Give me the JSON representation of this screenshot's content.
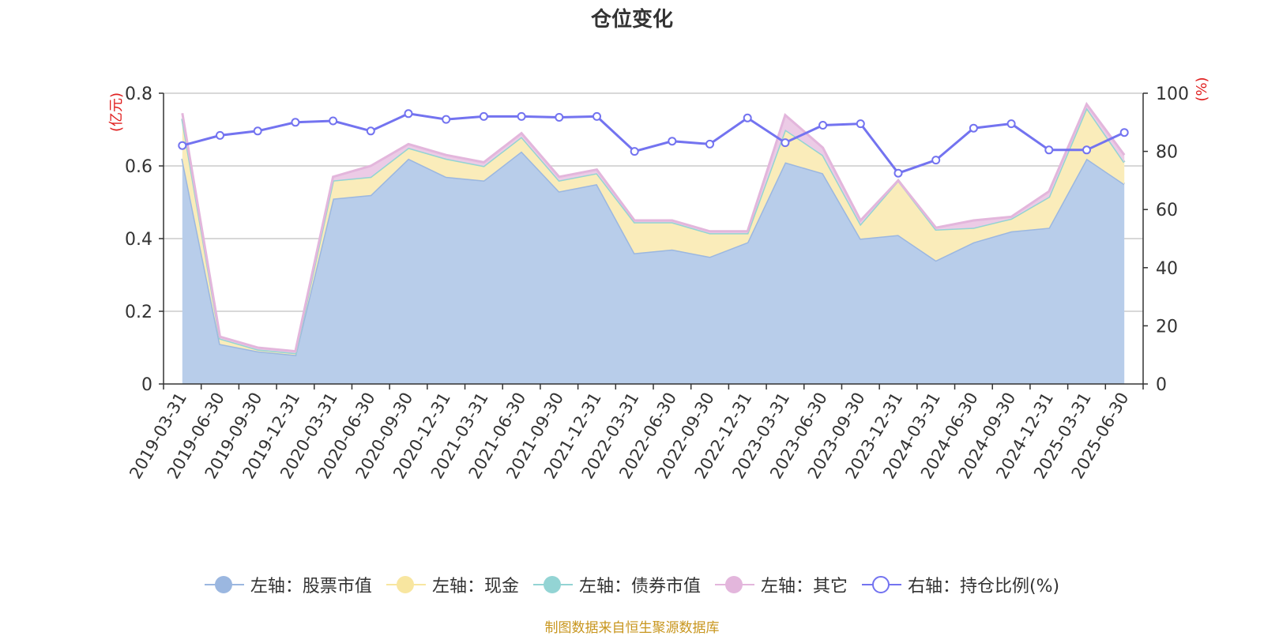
{
  "title": "仓位变化",
  "footer": "制图数据来自恒生聚源数据库",
  "chart_data": {
    "type": "area",
    "title": "仓位变化",
    "left_axis": {
      "label": "(亿元)",
      "ylim": [
        0,
        0.8
      ],
      "ticks": [
        0,
        0.2,
        0.4,
        0.6,
        0.8
      ],
      "tick_labels": [
        "0",
        "0.2",
        "0.4",
        "0.6",
        "0.8"
      ]
    },
    "right_axis": {
      "label": "(%)",
      "ylim": [
        0,
        100
      ],
      "ticks": [
        0,
        20,
        40,
        60,
        80,
        100
      ],
      "tick_labels": [
        "0",
        "20",
        "40",
        "60",
        "80",
        "100"
      ]
    },
    "categories": [
      "2019-03-31",
      "2019-06-30",
      "2019-09-30",
      "2019-12-31",
      "2020-03-31",
      "2020-06-30",
      "2020-09-30",
      "2020-12-31",
      "2021-03-31",
      "2021-06-30",
      "2021-09-30",
      "2021-12-31",
      "2022-03-31",
      "2022-06-30",
      "2022-09-30",
      "2022-12-31",
      "2023-03-31",
      "2023-06-30",
      "2023-09-30",
      "2023-12-31",
      "2024-03-31",
      "2024-06-30",
      "2024-09-30",
      "2024-12-31",
      "2025-03-31",
      "2025-06-30"
    ],
    "series": [
      {
        "name": "左轴：股票市值",
        "axis": "left",
        "color": "#9bb7e0",
        "fill": "#b8cdea",
        "values": [
          0.62,
          0.11,
          0.09,
          0.08,
          0.51,
          0.52,
          0.62,
          0.57,
          0.56,
          0.64,
          0.53,
          0.55,
          0.36,
          0.37,
          0.35,
          0.39,
          0.61,
          0.58,
          0.4,
          0.41,
          0.34,
          0.39,
          0.42,
          0.43,
          0.62,
          0.55
        ]
      },
      {
        "name": "左轴：现金",
        "axis": "left",
        "color": "#f8e6a0",
        "fill": "#faecba",
        "values": [
          0.11,
          0.015,
          0.005,
          0.005,
          0.05,
          0.05,
          0.03,
          0.05,
          0.04,
          0.04,
          0.03,
          0.03,
          0.085,
          0.075,
          0.065,
          0.025,
          0.09,
          0.05,
          0.04,
          0.15,
          0.085,
          0.04,
          0.035,
          0.085,
          0.14,
          0.06
        ]
      },
      {
        "name": "左轴：债券市值",
        "axis": "left",
        "color": "#93d4d4",
        "fill": "#b3e2e2",
        "values": [
          0,
          0,
          0,
          0,
          0,
          0,
          0,
          0,
          0,
          0,
          0,
          0,
          0,
          0,
          0,
          0,
          0,
          0,
          0,
          0,
          0,
          0,
          0,
          0,
          0,
          0
        ]
      },
      {
        "name": "左轴：其它",
        "axis": "left",
        "color": "#e3b6dc",
        "fill": "#eccbe6",
        "values": [
          0.015,
          0.005,
          0.005,
          0.005,
          0.01,
          0.03,
          0.01,
          0.01,
          0.01,
          0.01,
          0.01,
          0.01,
          0.005,
          0.005,
          0.005,
          0.005,
          0.04,
          0.02,
          0.01,
          0.0,
          0.005,
          0.02,
          0.005,
          0.015,
          0.01,
          0.02
        ]
      },
      {
        "name": "右轴：持仓比例(%)",
        "axis": "right",
        "color": "#7373f0",
        "values": [
          82,
          85.5,
          87,
          90,
          90.5,
          87,
          93,
          91,
          92,
          92,
          91.7,
          92,
          80,
          83.5,
          82.5,
          91.5,
          83,
          89,
          89.5,
          72.5,
          77,
          88,
          89.5,
          80.5,
          80.5,
          86.5
        ]
      }
    ],
    "grid": true,
    "legend_position": "bottom"
  }
}
